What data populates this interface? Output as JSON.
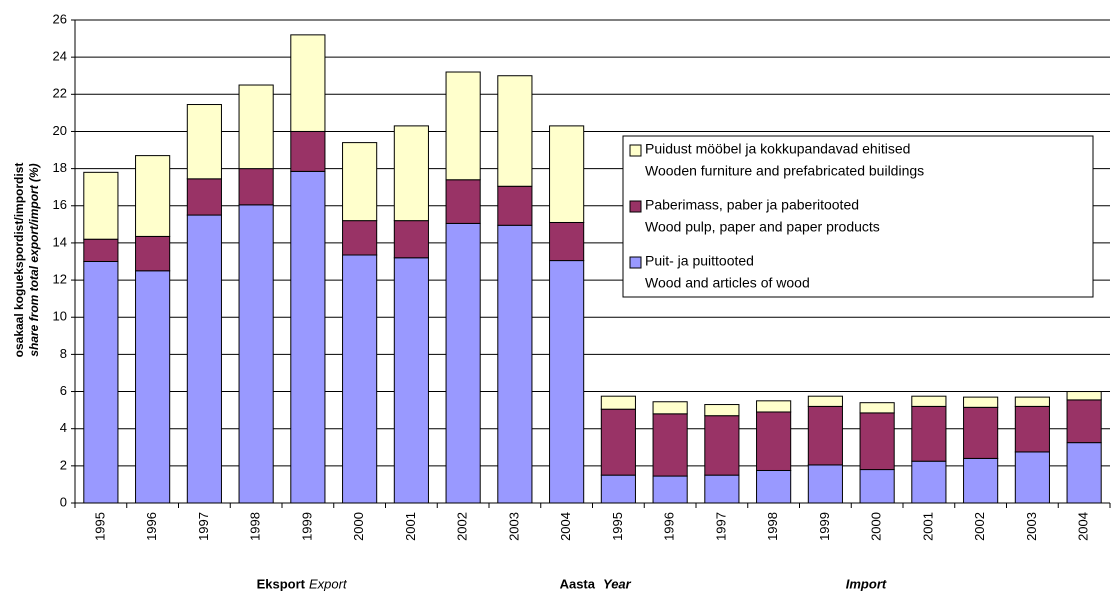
{
  "chart_data": {
    "type": "stacked_bar",
    "ylabel": [
      "osakaal koguekspordist/impordist",
      "share from total export/import (%)"
    ],
    "categories": [
      "1995",
      "1996",
      "1997",
      "1998",
      "1999",
      "2000",
      "2001",
      "2002",
      "2003",
      "2004",
      "1995",
      "1996",
      "1997",
      "1998",
      "1999",
      "2000",
      "2001",
      "2002",
      "2003",
      "2004"
    ],
    "series": [
      {
        "name": [
          "Puit- ja puittooted",
          "Wood and articles of wood"
        ],
        "color": "#9999ff",
        "values": [
          13,
          12.5,
          15.5,
          16.05,
          17.85,
          13.35,
          13.2,
          15.05,
          14.95,
          13.05,
          1.5,
          1.45,
          1.5,
          1.75,
          2.05,
          1.8,
          2.25,
          2.4,
          2.75,
          3.25
        ]
      },
      {
        "name": [
          "Paberimass, paber ja paberitooted",
          "Wood pulp, paper and paper products"
        ],
        "color": "#993366",
        "values": [
          1.2,
          1.85,
          1.95,
          1.95,
          2.15,
          1.85,
          2.0,
          2.35,
          2.1,
          2.05,
          3.55,
          3.35,
          3.2,
          3.15,
          3.15,
          3.05,
          2.95,
          2.75,
          2.45,
          2.3
        ]
      },
      {
        "name": [
          "Puidust mööbel ja kokkupandavad ehitised",
          "Wooden furniture and prefabricated buildings"
        ],
        "color": "#ffffcc",
        "values": [
          3.6,
          4.35,
          4.0,
          4.5,
          5.2,
          4.2,
          5.1,
          5.8,
          5.95,
          5.2,
          0.7,
          0.65,
          0.6,
          0.6,
          0.55,
          0.55,
          0.55,
          0.55,
          0.5,
          0.45
        ]
      }
    ],
    "group_labels": {
      "export": [
        "Eksport",
        "Export"
      ],
      "year": [
        "Aasta",
        "Year"
      ],
      "import": "Import"
    },
    "ylim": [
      0,
      26
    ],
    "yticks": [
      0,
      2,
      4,
      6,
      8,
      10,
      12,
      14,
      16,
      18,
      20,
      22,
      24,
      26
    ],
    "grid": true
  }
}
